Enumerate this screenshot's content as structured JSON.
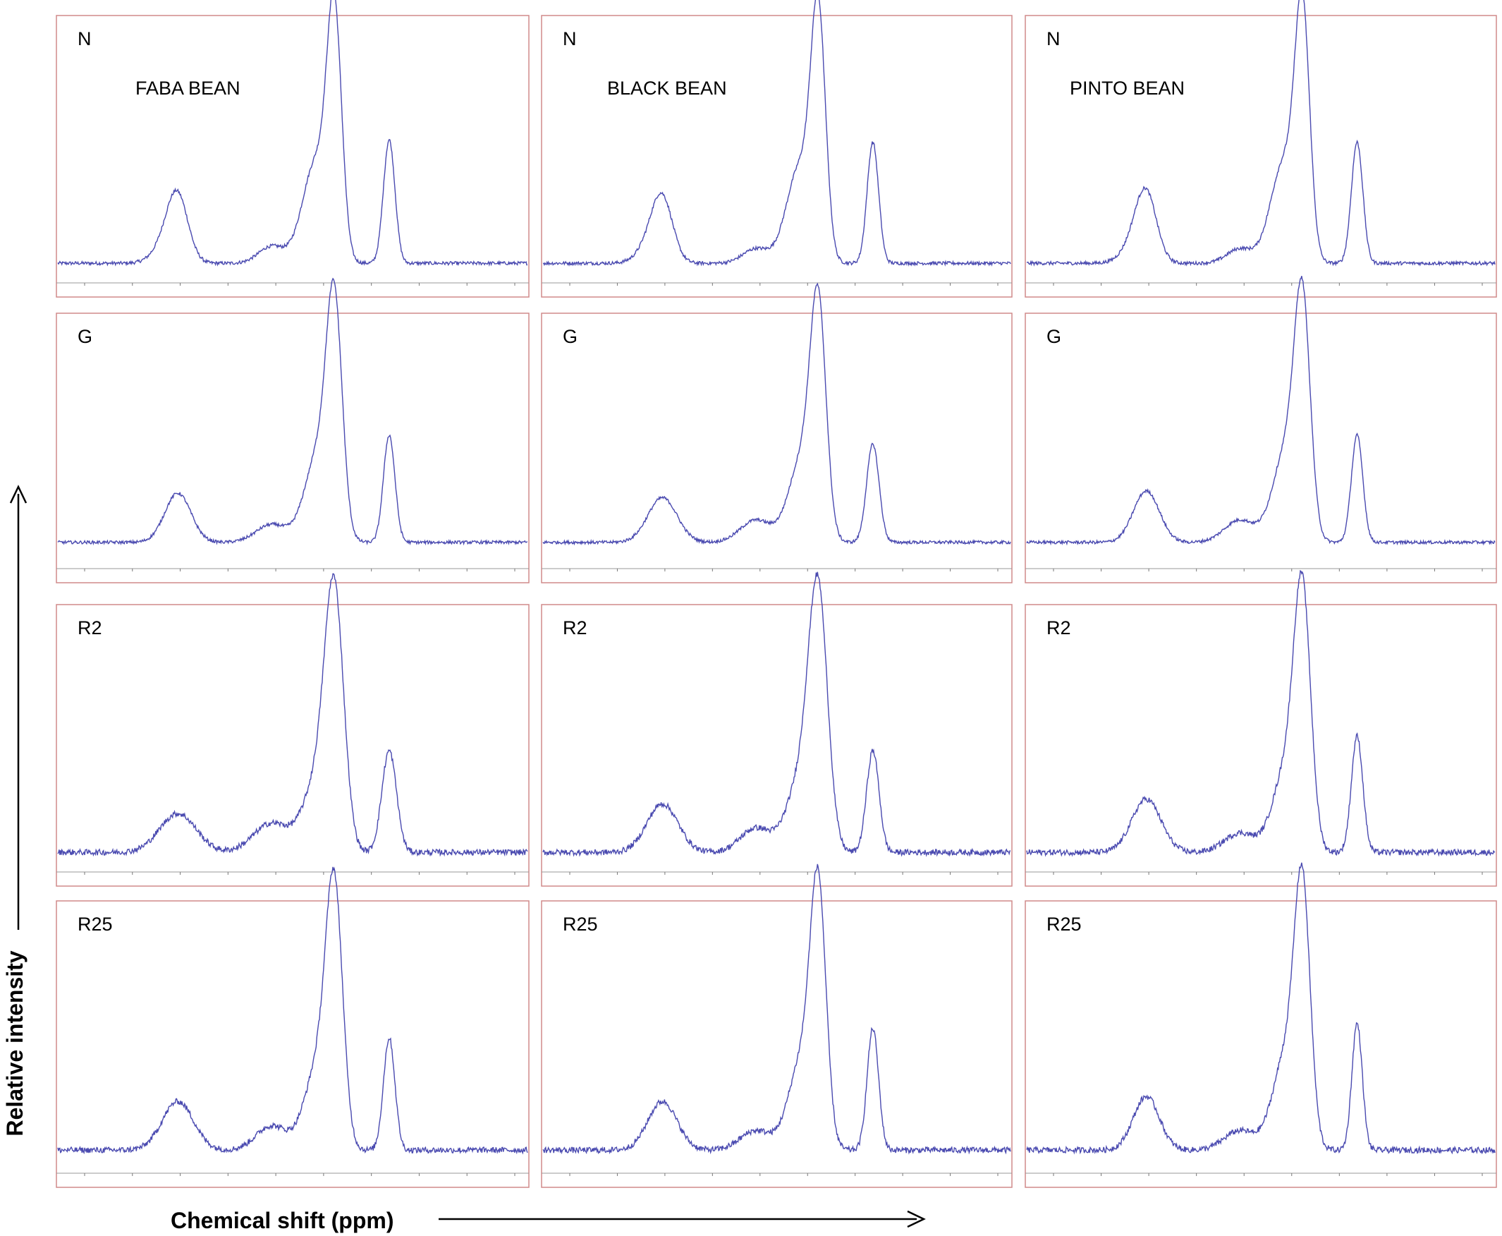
{
  "figure": {
    "y_axis_title": "Relative intensity",
    "x_axis_title": "Chemical shift (ppm)",
    "bean_labels": [
      "FABA BEAN",
      "BLACK BEAN",
      "PINTO BEAN"
    ],
    "row_labels": [
      "N",
      "G",
      "R2",
      "R25"
    ]
  },
  "colors": {
    "trace": "#4a4ab0",
    "frame": "#d08a8a",
    "arrow": "#000000"
  },
  "chart_data": {
    "type": "line",
    "description_source": "13C CP/MAS NMR spectra grid, 4 rows x 3 columns",
    "x_range_ppm": [
      125,
      35
    ],
    "x_reversed": true,
    "y_range": [
      0,
      1
    ],
    "grid": false,
    "legend": "none",
    "panels": [
      {
        "row": "N",
        "col": "FABA BEAN",
        "peaks": [
          {
            "ppm": 102.0,
            "height": 0.24,
            "width": 2.0
          },
          {
            "ppm": 104.0,
            "height": 0.08,
            "width": 2.5
          },
          {
            "ppm": 84.0,
            "height": 0.07,
            "width": 2.5
          },
          {
            "ppm": 75.5,
            "height": 0.42,
            "width": 2.6
          },
          {
            "ppm": 72.0,
            "height": 0.95,
            "width": 1.4
          },
          {
            "ppm": 61.5,
            "height": 0.51,
            "width": 1.1
          }
        ]
      },
      {
        "row": "N",
        "col": "BLACK BEAN",
        "peaks": [
          {
            "ppm": 102.0,
            "height": 0.23,
            "width": 2.0
          },
          {
            "ppm": 104.0,
            "height": 0.08,
            "width": 2.5
          },
          {
            "ppm": 84.0,
            "height": 0.06,
            "width": 2.5
          },
          {
            "ppm": 75.5,
            "height": 0.4,
            "width": 2.6
          },
          {
            "ppm": 72.0,
            "height": 0.95,
            "width": 1.4
          },
          {
            "ppm": 61.5,
            "height": 0.5,
            "width": 1.1
          }
        ]
      },
      {
        "row": "N",
        "col": "PINTO BEAN",
        "peaks": [
          {
            "ppm": 102.0,
            "height": 0.25,
            "width": 2.0
          },
          {
            "ppm": 104.0,
            "height": 0.08,
            "width": 2.5
          },
          {
            "ppm": 84.0,
            "height": 0.06,
            "width": 2.5
          },
          {
            "ppm": 75.5,
            "height": 0.42,
            "width": 2.6
          },
          {
            "ppm": 72.0,
            "height": 0.96,
            "width": 1.4
          },
          {
            "ppm": 61.5,
            "height": 0.5,
            "width": 1.1
          }
        ]
      },
      {
        "row": "G",
        "col": "FABA BEAN",
        "peaks": [
          {
            "ppm": 102.0,
            "height": 0.22,
            "width": 2.5
          },
          {
            "ppm": 84.0,
            "height": 0.08,
            "width": 3.0
          },
          {
            "ppm": 75.0,
            "height": 0.4,
            "width": 2.6
          },
          {
            "ppm": 72.0,
            "height": 0.96,
            "width": 1.5
          },
          {
            "ppm": 61.5,
            "height": 0.48,
            "width": 1.1
          }
        ]
      },
      {
        "row": "G",
        "col": "BLACK BEAN",
        "peaks": [
          {
            "ppm": 102.0,
            "height": 0.2,
            "width": 2.8
          },
          {
            "ppm": 84.0,
            "height": 0.1,
            "width": 3.0
          },
          {
            "ppm": 75.0,
            "height": 0.38,
            "width": 2.6
          },
          {
            "ppm": 72.0,
            "height": 0.95,
            "width": 1.5
          },
          {
            "ppm": 61.5,
            "height": 0.44,
            "width": 1.2
          }
        ]
      },
      {
        "row": "G",
        "col": "PINTO BEAN",
        "peaks": [
          {
            "ppm": 102.0,
            "height": 0.23,
            "width": 2.5
          },
          {
            "ppm": 84.0,
            "height": 0.1,
            "width": 3.0
          },
          {
            "ppm": 75.0,
            "height": 0.42,
            "width": 2.6
          },
          {
            "ppm": 72.0,
            "height": 0.96,
            "width": 1.5
          },
          {
            "ppm": 61.5,
            "height": 0.48,
            "width": 1.1
          }
        ]
      },
      {
        "row": "R2",
        "col": "FABA BEAN",
        "peaks": [
          {
            "ppm": 102.0,
            "height": 0.16,
            "width": 3.5
          },
          {
            "ppm": 84.0,
            "height": 0.12,
            "width": 3.5
          },
          {
            "ppm": 75.0,
            "height": 0.3,
            "width": 2.8
          },
          {
            "ppm": 72.0,
            "height": 0.97,
            "width": 1.8
          },
          {
            "ppm": 61.5,
            "height": 0.42,
            "width": 1.4
          }
        ]
      },
      {
        "row": "R2",
        "col": "BLACK BEAN",
        "peaks": [
          {
            "ppm": 102.0,
            "height": 0.2,
            "width": 3.0
          },
          {
            "ppm": 84.0,
            "height": 0.1,
            "width": 3.0
          },
          {
            "ppm": 75.0,
            "height": 0.32,
            "width": 2.8
          },
          {
            "ppm": 72.0,
            "height": 0.96,
            "width": 1.8
          },
          {
            "ppm": 61.5,
            "height": 0.42,
            "width": 1.2
          }
        ]
      },
      {
        "row": "R2",
        "col": "PINTO BEAN",
        "peaks": [
          {
            "ppm": 102.0,
            "height": 0.22,
            "width": 2.8
          },
          {
            "ppm": 84.0,
            "height": 0.08,
            "width": 3.0
          },
          {
            "ppm": 75.0,
            "height": 0.35,
            "width": 2.6
          },
          {
            "ppm": 72.0,
            "height": 0.97,
            "width": 1.6
          },
          {
            "ppm": 61.5,
            "height": 0.48,
            "width": 1.1
          }
        ]
      },
      {
        "row": "R25",
        "col": "FABA BEAN",
        "peaks": [
          {
            "ppm": 102.0,
            "height": 0.2,
            "width": 3.0
          },
          {
            "ppm": 84.0,
            "height": 0.1,
            "width": 3.0
          },
          {
            "ppm": 75.0,
            "height": 0.35,
            "width": 2.6
          },
          {
            "ppm": 72.0,
            "height": 0.97,
            "width": 1.6
          },
          {
            "ppm": 61.5,
            "height": 0.46,
            "width": 1.1
          }
        ]
      },
      {
        "row": "R25",
        "col": "BLACK BEAN",
        "peaks": [
          {
            "ppm": 102.0,
            "height": 0.2,
            "width": 2.8
          },
          {
            "ppm": 84.0,
            "height": 0.08,
            "width": 3.0
          },
          {
            "ppm": 75.0,
            "height": 0.38,
            "width": 2.6
          },
          {
            "ppm": 72.0,
            "height": 0.96,
            "width": 1.5
          },
          {
            "ppm": 61.5,
            "height": 0.5,
            "width": 1.1
          }
        ]
      },
      {
        "row": "R25",
        "col": "PINTO BEAN",
        "peaks": [
          {
            "ppm": 102.0,
            "height": 0.22,
            "width": 2.5
          },
          {
            "ppm": 84.0,
            "height": 0.08,
            "width": 3.0
          },
          {
            "ppm": 75.0,
            "height": 0.4,
            "width": 2.6
          },
          {
            "ppm": 72.0,
            "height": 0.96,
            "width": 1.5
          },
          {
            "ppm": 61.5,
            "height": 0.52,
            "width": 1.0
          }
        ]
      }
    ]
  }
}
